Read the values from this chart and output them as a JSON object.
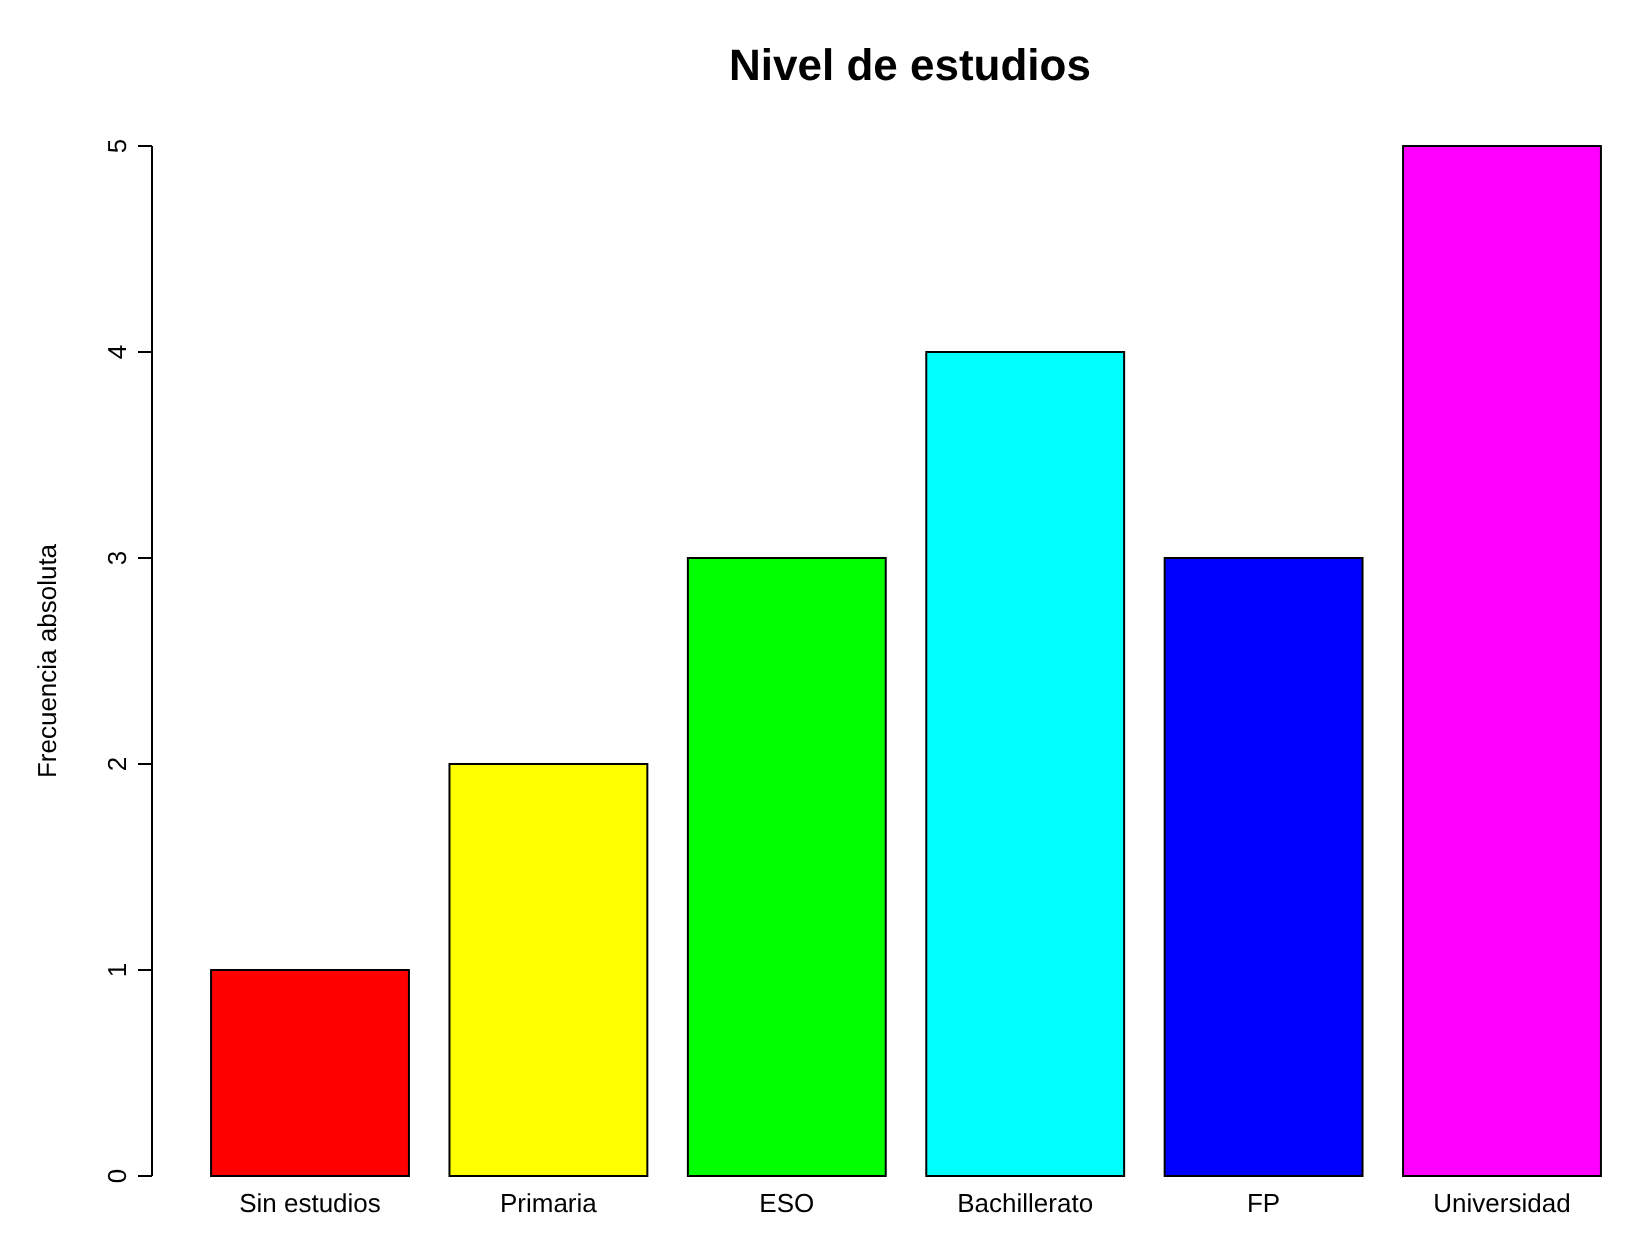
{
  "chart_data": {
    "type": "bar",
    "title": "Nivel de estudios",
    "ylabel": "Frecuencia absoluta",
    "categories": [
      "Sin estudios",
      "Primaria",
      "ESO",
      "Bachillerato",
      "FP",
      "Universidad"
    ],
    "values": [
      1,
      2,
      3,
      4,
      3,
      5
    ],
    "colors": [
      "#ff0000",
      "#ffff00",
      "#00ff00",
      "#00ffff",
      "#0000ff",
      "#ff00ff"
    ],
    "ylim": [
      0,
      5
    ],
    "yticks": [
      0,
      1,
      2,
      3,
      4,
      5
    ],
    "grid": false
  }
}
